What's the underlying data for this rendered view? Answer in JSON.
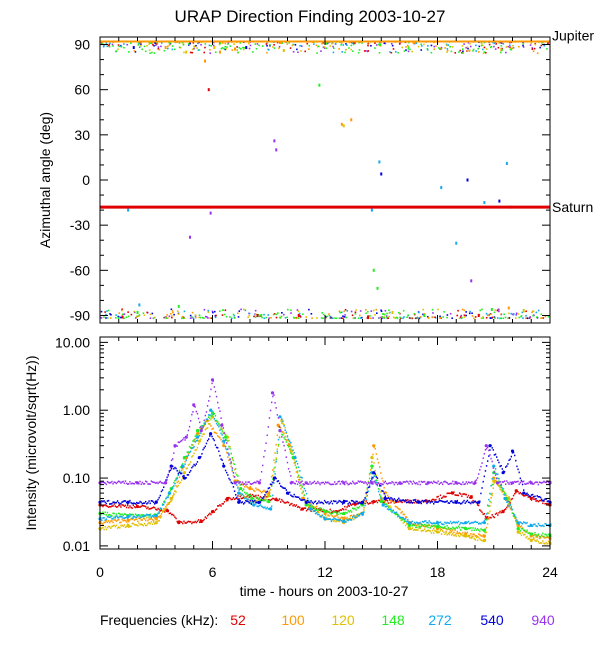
{
  "title": "URAP Direction Finding  2003-10-27",
  "x_axis": {
    "label": "time - hours on 2003-10-27",
    "range": [
      0,
      24
    ],
    "major_ticks": [
      0,
      6,
      12,
      18,
      24
    ],
    "tick_labels": [
      "0",
      "6",
      "12",
      "18",
      "24"
    ]
  },
  "legend": {
    "label": "Frequencies (kHz):",
    "entries": [
      {
        "name": "52",
        "color": "#e00000"
      },
      {
        "name": "100",
        "color": "#ff9900"
      },
      {
        "name": "120",
        "color": "#e0c000"
      },
      {
        "name": "148",
        "color": "#22ee22"
      },
      {
        "name": "272",
        "color": "#11aaee"
      },
      {
        "name": "540",
        "color": "#0000dd"
      },
      {
        "name": "940",
        "color": "#9933ee"
      }
    ]
  },
  "chart_data": [
    {
      "type": "scatter",
      "panel": "top",
      "ylabel": "Azimuthal angle (deg)",
      "xlim": [
        0,
        24
      ],
      "ylim": [
        -95,
        95
      ],
      "ytick_values": [
        90,
        60,
        30,
        0,
        -30,
        -60,
        -90
      ],
      "ytick_labels": [
        "90",
        "60",
        "30",
        "0",
        "-30",
        "-60",
        "-90"
      ],
      "reference_lines": [
        {
          "name": "Jupiter",
          "y": 92,
          "color": "#ff9900"
        },
        {
          "name": "Saturn",
          "y": -18,
          "color": "#e00000"
        }
      ],
      "series": [
        {
          "name": "52",
          "x": [
            1.2,
            5.8,
            8.4,
            10.6,
            14.3,
            20.2
          ],
          "y": [
            -91,
            60,
            -90,
            -90,
            -91,
            -90
          ]
        },
        {
          "name": "100",
          "x": [
            3.5,
            5.6,
            6.4,
            7.2,
            12.9,
            13.4,
            21.8
          ],
          "y": [
            88,
            79,
            85,
            87,
            37,
            40,
            -85
          ]
        },
        {
          "name": "120",
          "x": [
            4.6,
            6.1,
            9.8,
            13.0,
            15.6,
            22.6
          ],
          "y": [
            85,
            88,
            86,
            36,
            -88,
            -87
          ]
        },
        {
          "name": "148",
          "x": [
            2.0,
            4.2,
            8.6,
            11.7,
            14.6,
            14.8,
            17.3,
            20.9
          ],
          "y": [
            -88,
            -84,
            -90,
            63,
            -60,
            -72,
            -90,
            -86
          ]
        },
        {
          "name": "272",
          "x": [
            1.5,
            2.1,
            14.5,
            14.9,
            18.2,
            19.0,
            20.5,
            21.7,
            21.9
          ],
          "y": [
            -20,
            -83,
            -20,
            12,
            -5,
            -42,
            -15,
            11,
            -18
          ]
        },
        {
          "name": "540",
          "x": [
            1.8,
            7.8,
            15.0,
            19.6,
            21.3
          ],
          "y": [
            88,
            88,
            4,
            0,
            -14
          ]
        },
        {
          "name": "940",
          "x": [
            4.8,
            5.9,
            9.3,
            9.4,
            19.8
          ],
          "y": [
            -38,
            -22,
            26,
            20,
            -67
          ]
        }
      ]
    },
    {
      "type": "line",
      "panel": "bottom",
      "ylabel": "Intensity (microvolt/sqrt(Hz))",
      "yscale": "log",
      "xlim": [
        0,
        24
      ],
      "ylim": [
        0.009,
        12
      ],
      "ytick_values": [
        10.0,
        1.0,
        0.1,
        0.01
      ],
      "ytick_labels": [
        "10.00",
        "1.00",
        "0.10",
        "0.01"
      ],
      "series": [
        {
          "name": "52",
          "x": [
            0,
            2,
            3.6,
            4.2,
            5.4,
            6.0,
            6.8,
            8.0,
            9.4,
            10.8,
            12.6,
            13.6,
            14.6,
            15.8,
            17.4,
            18.8,
            19.8,
            20.6,
            21.5,
            22.2,
            23.0,
            24.0
          ],
          "y": [
            0.04,
            0.038,
            0.033,
            0.022,
            0.023,
            0.032,
            0.05,
            0.055,
            0.048,
            0.035,
            0.032,
            0.042,
            0.045,
            0.045,
            0.046,
            0.06,
            0.052,
            0.025,
            0.032,
            0.065,
            0.05,
            0.04
          ]
        },
        {
          "name": "100",
          "x": [
            0,
            1.5,
            3.0,
            3.8,
            4.6,
            5.2,
            5.7,
            6.6,
            7.2,
            8.0,
            9.0,
            9.5,
            10.1,
            10.8,
            12.0,
            13.0,
            14.0,
            14.6,
            15.2,
            16.5,
            18.0,
            19.5,
            20.5,
            21.0,
            21.6,
            22.3,
            23.0,
            24.0
          ],
          "y": [
            0.022,
            0.024,
            0.025,
            0.05,
            0.2,
            0.45,
            0.7,
            0.3,
            0.09,
            0.07,
            0.06,
            0.6,
            0.3,
            0.05,
            0.03,
            0.025,
            0.03,
            0.3,
            0.06,
            0.022,
            0.018,
            0.015,
            0.014,
            0.1,
            0.05,
            0.02,
            0.014,
            0.013
          ]
        },
        {
          "name": "120",
          "x": [
            0,
            1.5,
            3.0,
            3.8,
            4.5,
            5.3,
            6.0,
            6.8,
            7.4,
            8.1,
            9.0,
            9.7,
            10.2,
            11.0,
            12.0,
            13.0,
            14.0,
            14.5,
            15.0,
            16.5,
            18.0,
            19.5,
            20.5,
            21.0,
            21.8,
            22.3,
            23.0,
            24.0
          ],
          "y": [
            0.018,
            0.02,
            0.022,
            0.05,
            0.12,
            0.35,
            0.8,
            0.4,
            0.06,
            0.045,
            0.055,
            0.7,
            0.25,
            0.04,
            0.025,
            0.022,
            0.03,
            0.2,
            0.05,
            0.018,
            0.016,
            0.014,
            0.012,
            0.09,
            0.05,
            0.016,
            0.012,
            0.011
          ]
        },
        {
          "name": "148",
          "x": [
            0,
            1.5,
            3.0,
            3.8,
            4.5,
            5.2,
            6.0,
            6.7,
            7.5,
            8.1,
            9.0,
            9.6,
            10.3,
            11.0,
            12.0,
            13.0,
            14.0,
            14.5,
            15.0,
            16.5,
            18.0,
            19.5,
            20.5,
            21.0,
            21.7,
            22.3,
            23.0,
            24.0
          ],
          "y": [
            0.03,
            0.028,
            0.028,
            0.07,
            0.2,
            0.5,
            0.9,
            0.4,
            0.07,
            0.05,
            0.045,
            0.5,
            0.2,
            0.04,
            0.032,
            0.03,
            0.04,
            0.15,
            0.045,
            0.02,
            0.019,
            0.018,
            0.017,
            0.12,
            0.05,
            0.018,
            0.015,
            0.014
          ]
        },
        {
          "name": "272",
          "x": [
            0,
            1.5,
            3.0,
            3.7,
            4.4,
            5.2,
            5.9,
            6.6,
            7.4,
            8.2,
            9.1,
            9.6,
            10.4,
            11.2,
            12.0,
            13.0,
            14.0,
            14.5,
            15.1,
            16.5,
            18.0,
            19.5,
            20.5,
            21.0,
            21.6,
            22.3,
            23.0,
            24.0
          ],
          "y": [
            0.025,
            0.027,
            0.028,
            0.06,
            0.15,
            0.4,
            1.0,
            0.35,
            0.06,
            0.04,
            0.035,
            0.8,
            0.2,
            0.035,
            0.025,
            0.023,
            0.03,
            0.12,
            0.04,
            0.022,
            0.022,
            0.022,
            0.022,
            0.15,
            0.05,
            0.022,
            0.02,
            0.02
          ]
        },
        {
          "name": "540",
          "x": [
            0,
            1.5,
            3.0,
            3.8,
            4.5,
            5.3,
            5.9,
            6.6,
            7.4,
            8.5,
            9.3,
            10.0,
            11.0,
            13.0,
            14.0,
            14.6,
            15.2,
            17.0,
            19.0,
            20.2,
            20.8,
            21.5,
            22.0,
            22.6,
            24.0
          ],
          "y": [
            0.044,
            0.044,
            0.044,
            0.15,
            0.1,
            0.2,
            0.45,
            0.15,
            0.044,
            0.044,
            0.1,
            0.06,
            0.044,
            0.044,
            0.044,
            0.12,
            0.05,
            0.044,
            0.044,
            0.044,
            0.3,
            0.12,
            0.25,
            0.06,
            0.044
          ]
        },
        {
          "name": "940",
          "x": [
            0,
            2.0,
            3.5,
            4.0,
            4.6,
            5.0,
            5.4,
            6.0,
            6.5,
            7.2,
            8.5,
            9.2,
            9.6,
            10.2,
            11.0,
            13.0,
            14.5,
            16.0,
            17.5,
            19.0,
            20.0,
            20.6,
            21.2,
            22.0,
            23.0,
            24.0
          ],
          "y": [
            0.085,
            0.085,
            0.085,
            0.3,
            0.4,
            1.2,
            0.5,
            2.8,
            0.6,
            0.085,
            0.085,
            1.8,
            0.5,
            0.085,
            0.085,
            0.085,
            0.085,
            0.085,
            0.085,
            0.085,
            0.085,
            0.3,
            0.085,
            0.085,
            0.085,
            0.085
          ]
        }
      ]
    }
  ]
}
